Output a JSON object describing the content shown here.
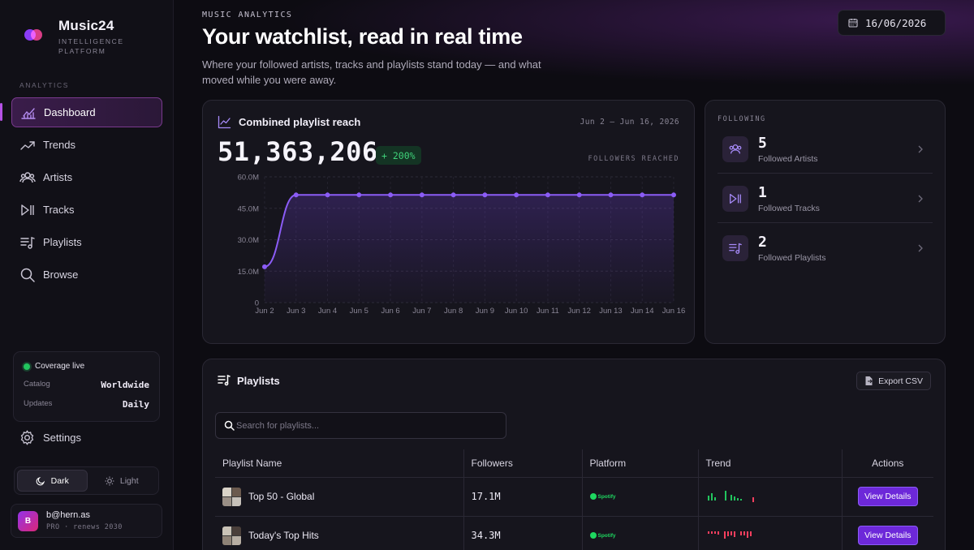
{
  "brand": {
    "name": "Music24",
    "subtitle_1": "INTELLIGENCE",
    "subtitle_2": "PLATFORM"
  },
  "sidebar": {
    "section_label": "ANALYTICS",
    "items": [
      {
        "label": "Dashboard",
        "icon": "chart-bars-icon",
        "active": true
      },
      {
        "label": "Trends",
        "icon": "trend-line-icon"
      },
      {
        "label": "Artists",
        "icon": "users-icon"
      },
      {
        "label": "Tracks",
        "icon": "play-pause-icon"
      },
      {
        "label": "Playlists",
        "icon": "playlist-icon"
      },
      {
        "label": "Browse",
        "icon": "search-icon"
      }
    ],
    "coverage": {
      "status": "Coverage live",
      "catalog_label": "Catalog",
      "catalog_value": "Worldwide",
      "updates_label": "Updates",
      "updates_value": "Daily"
    },
    "settings_label": "Settings",
    "theme": {
      "dark": "Dark",
      "light": "Light",
      "selected": "Dark"
    },
    "user": {
      "initial": "B",
      "email": "b@hern.as",
      "plan": "PRO · renews 2030"
    }
  },
  "header": {
    "eyebrow": "MUSIC ANALYTICS",
    "title": "Your watchlist, read in real time",
    "description": "Where your followed artists, tracks and playlists stand today — and what moved while you were away.",
    "date": "16/06/2026"
  },
  "reach": {
    "title": "Combined playlist reach",
    "range": "Jun 2 – Jun 16, 2026",
    "total": "51,363,206",
    "change": "+ 200%",
    "sub_label": "FOLLOWERS REACHED"
  },
  "chart_data": {
    "type": "area",
    "x": [
      "Jun 2",
      "Jun 3",
      "Jun 4",
      "Jun 5",
      "Jun 6",
      "Jun 7",
      "Jun 8",
      "Jun 9",
      "Jun 10",
      "Jun 11",
      "Jun 12",
      "Jun 13",
      "Jun 14",
      "Jun 16"
    ],
    "values": [
      17100000,
      51363206,
      51363206,
      51363206,
      51363206,
      51363206,
      51363206,
      51363206,
      51363206,
      51363206,
      51363206,
      51363206,
      51363206,
      51363206
    ],
    "ylim": [
      0,
      60000000
    ],
    "yticks": [
      "0",
      "15.0M",
      "30.0M",
      "45.0M",
      "60.0M"
    ],
    "grid": true,
    "color": "#8b5cf6"
  },
  "following": {
    "label": "FOLLOWING",
    "rows": [
      {
        "count": "5",
        "label": "Followed Artists",
        "icon": "users-icon"
      },
      {
        "count": "1",
        "label": "Followed Tracks",
        "icon": "play-pause-icon"
      },
      {
        "count": "2",
        "label": "Followed Playlists",
        "icon": "playlist-icon"
      }
    ]
  },
  "playlists": {
    "title": "Playlists",
    "export_label": "Export CSV",
    "search_placeholder": "Search for playlists...",
    "columns": [
      "Playlist Name",
      "Followers",
      "Platform",
      "Trend",
      "Actions"
    ],
    "rows": [
      {
        "name": "Top 50 - Global",
        "followers": "17.1M",
        "platform": "Spotify",
        "action": "View Details"
      },
      {
        "name": "Today's Top Hits",
        "followers": "34.3M",
        "platform": "Spotify",
        "action": "View Details"
      }
    ]
  }
}
